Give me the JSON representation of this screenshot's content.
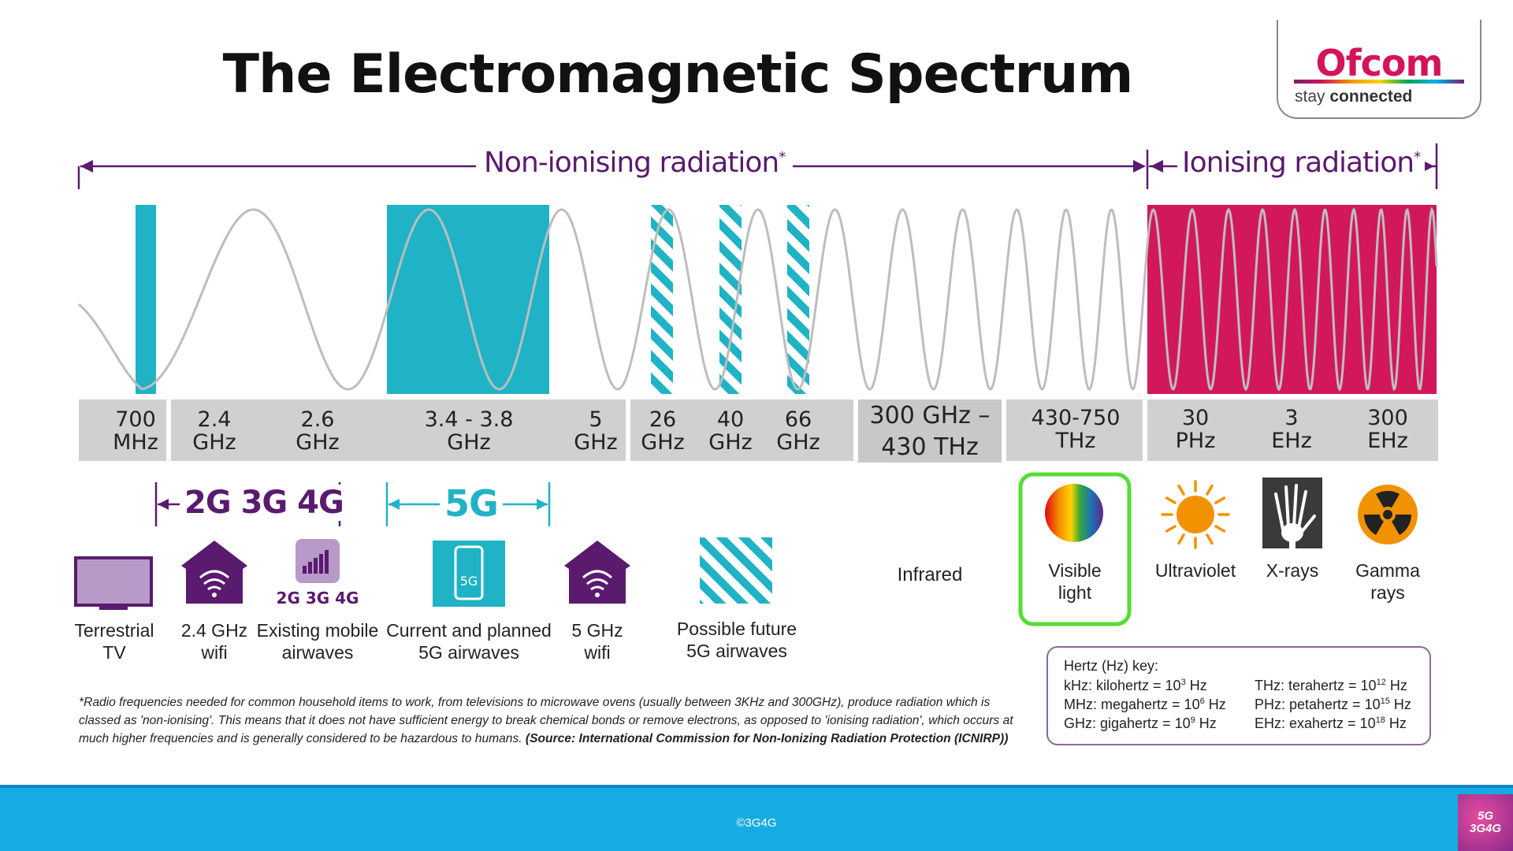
{
  "title": "The Electromagnetic Spectrum",
  "logo": {
    "name": "Ofcom",
    "tagline_prefix": "stay",
    "tagline_bold": "connected"
  },
  "ranges": {
    "non_ionising": "Non-ionising radiation",
    "ionising": "Ionising radiation",
    "asterisk": "*"
  },
  "frequencies": [
    {
      "label": "700\nMHz"
    },
    {
      "label": "2.4\nGHz"
    },
    {
      "label": "2.6\nGHz"
    },
    {
      "label": "3.4 - 3.8\nGHz"
    },
    {
      "label": "5\nGHz"
    },
    {
      "label": "26\nGHz"
    },
    {
      "label": "40\nGHz"
    },
    {
      "label": "66\nGHz"
    },
    {
      "label": "300 GHz –\n430 THz"
    },
    {
      "label": "430-750\nTHz"
    },
    {
      "label": "30\nPHz"
    },
    {
      "label": "3\nEHz"
    },
    {
      "label": "300\nEHz"
    }
  ],
  "groups": {
    "mobile": "2G 3G 4G",
    "fiveg": "5G"
  },
  "icon_text": {
    "mobile_bars": "2G 3G 4G",
    "phone": "5G"
  },
  "captions": {
    "tv": "Terrestrial\nTV",
    "wifi24": "2.4 GHz\nwifi",
    "mobile": "Existing mobile\nairwaves",
    "fiveg": "Current and planned\n5G airwaves",
    "wifi5": "5 GHz\nwifi",
    "future": "Possible future\n5G airwaves",
    "infrared": "Infrared",
    "visible": "Visible\nlight",
    "uv": "Ultraviolet",
    "xray": "X-rays",
    "gamma": "Gamma\nrays"
  },
  "footnote": {
    "text": "*Radio frequencies needed for common household items to work, from televisions to microwave ovens (usually between 3KHz and 300GHz), produce radiation which is classed as 'non-ionising'. This means that it does not have sufficient energy to break chemical bonds or remove electrons, as opposed to 'ionising radiation', which occurs at much higher frequencies and is generally considered to be hazardous to humans. ",
    "source": "(Source: International Commission for Non-Ionizing Radiation Protection (ICNIRP))"
  },
  "hz_key": {
    "heading": "Hertz (Hz) key:",
    "left": [
      {
        "abbr": "kHz: kilohertz = 10",
        "exp": "3",
        "unit": " Hz"
      },
      {
        "abbr": "MHz: megahertz = 10",
        "exp": "6",
        "unit": " Hz"
      },
      {
        "abbr": "GHz: gigahertz = 10",
        "exp": "9",
        "unit": " Hz"
      }
    ],
    "right": [
      {
        "abbr": "THz: terahertz = 10",
        "exp": "12",
        "unit": " Hz"
      },
      {
        "abbr": "PHz: petahertz = 10",
        "exp": "15",
        "unit": " Hz"
      },
      {
        "abbr": "EHz: exahertz = 10",
        "exp": "18",
        "unit": " Hz"
      }
    ]
  },
  "footer": {
    "copyright": "©3G4G",
    "badge_top": "5G",
    "badge_bottom": "3G4G"
  },
  "colors": {
    "purple": "#5a1a6e",
    "teal": "#1fb3c5",
    "crimson": "#d2185a",
    "grey_band": "#d0d0d0",
    "wave": "#bdbdbd",
    "footer_blue": "#17abe3",
    "visible_border": "#55dd33"
  },
  "icons": [
    "tv-icon",
    "house-wifi-icon",
    "signal-bars-icon",
    "phone-5g-icon",
    "hatched-square-icon",
    "rainbow-circle-icon",
    "sun-icon",
    "xray-hand-icon",
    "radiation-icon"
  ]
}
